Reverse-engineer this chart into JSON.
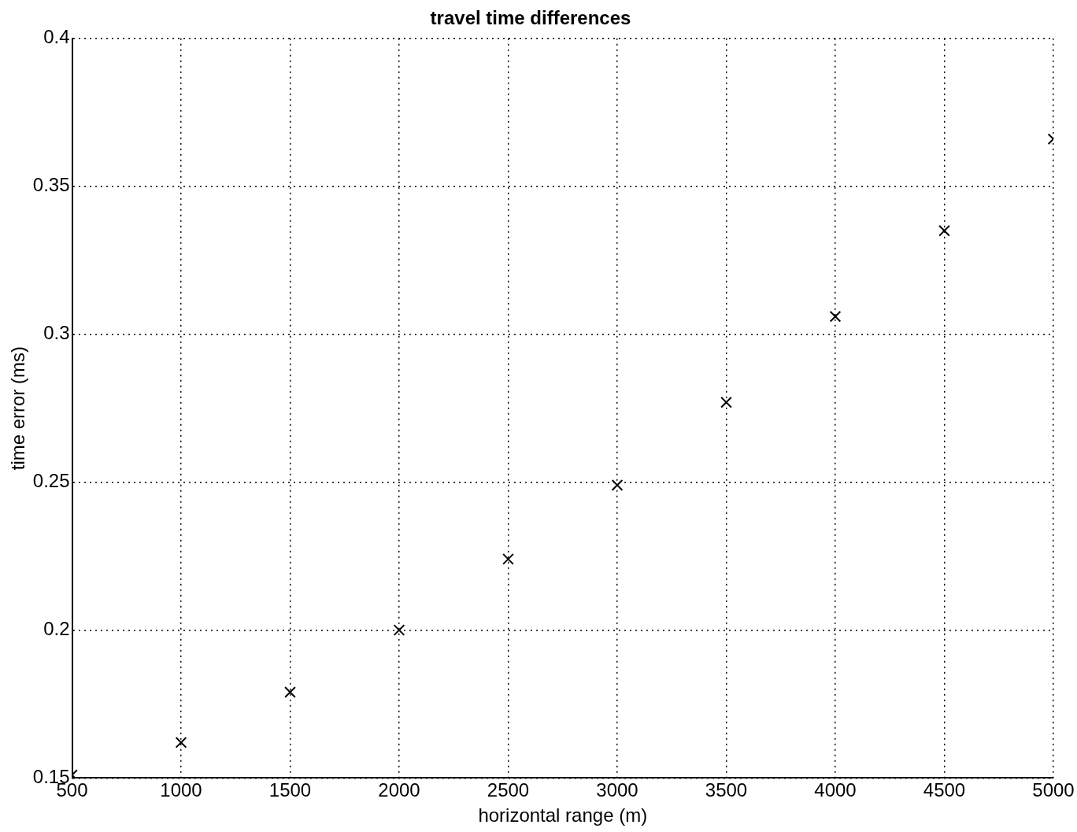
{
  "chart_data": {
    "type": "scatter",
    "title": "travel time differences",
    "xlabel": "horizontal range (m)",
    "ylabel": "time error (ms)",
    "x": [
      500,
      1000,
      1500,
      2000,
      2500,
      3000,
      3500,
      4000,
      4500,
      5000
    ],
    "series": [
      {
        "color": "#000000",
        "values": [
          0.151,
          0.162,
          0.179,
          0.2,
          0.224,
          0.249,
          0.277,
          0.306,
          0.335,
          0.366
        ]
      }
    ],
    "xlim": [
      500,
      5000
    ],
    "xticks": [
      500,
      1000,
      1500,
      2000,
      2500,
      3000,
      3500,
      4000,
      4500,
      5000
    ],
    "ylim": [
      0.15,
      0.4
    ],
    "yticks": [
      0.15,
      0.2,
      0.25,
      0.3,
      0.35,
      0.4
    ],
    "grid": true,
    "marker": "cross",
    "line_style": "dotted",
    "legend": false
  }
}
